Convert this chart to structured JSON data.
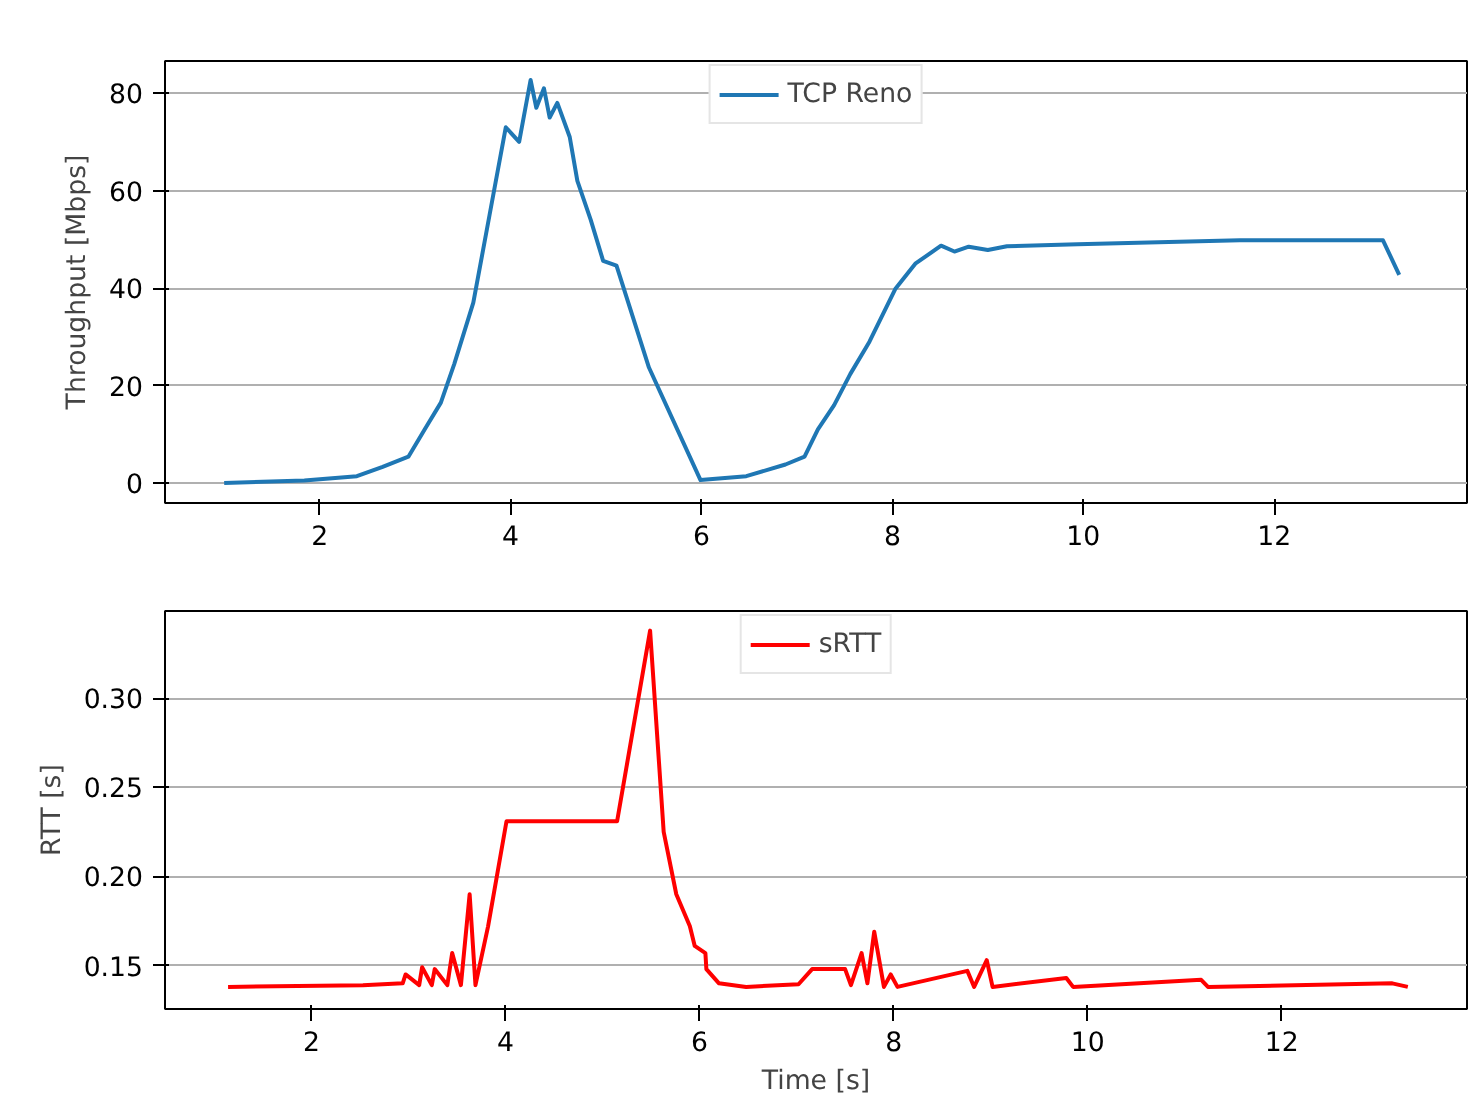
{
  "chart_data": [
    {
      "type": "line",
      "ylabel": "Throughput [Mbps]",
      "xlim": [
        0.38,
        14.02
      ],
      "xticks": [
        2,
        4,
        6,
        8,
        10,
        12
      ],
      "ylim": [
        -4.1,
        86.6
      ],
      "yticks": [
        0,
        20,
        40,
        60,
        80
      ],
      "grid": "y",
      "legend": "top",
      "series": [
        {
          "name": "TCP Reno",
          "color": "#1f77b4",
          "x": [
            1.0,
            1.84,
            2.39,
            2.66,
            2.93,
            3.1,
            3.27,
            3.41,
            3.61,
            3.78,
            3.95,
            4.09,
            4.21,
            4.27,
            4.35,
            4.41,
            4.49,
            4.62,
            4.7,
            4.84,
            4.97,
            5.11,
            5.45,
            5.99,
            6.47,
            6.88,
            7.08,
            7.22,
            7.39,
            7.56,
            7.76,
            8.03,
            8.24,
            8.51,
            8.65,
            8.8,
            9.0,
            9.2,
            9.94,
            11.64,
            13.14,
            13.31
          ],
          "values": [
            0,
            0.5,
            1.4,
            3.3,
            5.4,
            11,
            16.5,
            24.4,
            37,
            55,
            73,
            70,
            82.7,
            77,
            81,
            75,
            78,
            71,
            62,
            54,
            45.6,
            44.6,
            23.7,
            0.6,
            1.4,
            3.8,
            5.4,
            11,
            16,
            22.4,
            29,
            39.8,
            45,
            48.7,
            47.5,
            48.5,
            47.8,
            48.6,
            49,
            49.8,
            49.8,
            42.7
          ]
        }
      ]
    },
    {
      "type": "line",
      "xlabel": "Time [s]",
      "ylabel": "RTT [s]",
      "xlim": [
        0.49,
        13.91
      ],
      "xticks": [
        2,
        4,
        6,
        8,
        10,
        12
      ],
      "ylim": [
        0.1256,
        0.349
      ],
      "yticks": [
        0.15,
        {
          "value": 0.2,
          "label": "0.20"
        },
        0.25,
        {
          "value": 0.3,
          "label": "0.30"
        }
      ],
      "grid": "y",
      "legend": "top",
      "series": [
        {
          "name": "sRTT",
          "color": "#ff0000",
          "x": [
            1.14,
            2.53,
            2.94,
            2.97,
            3.11,
            3.14,
            3.24,
            3.27,
            3.4,
            3.45,
            3.54,
            3.63,
            3.69,
            3.82,
            4.01,
            5.15,
            5.49,
            5.63,
            5.76,
            5.9,
            5.95,
            6.06,
            6.07,
            6.2,
            6.48,
            7.02,
            7.16,
            7.5,
            7.56,
            7.67,
            7.73,
            7.8,
            7.9,
            7.97,
            8.04,
            8.76,
            8.83,
            8.96,
            9.02,
            9.78,
            9.85,
            11.17,
            11.24,
            13.14,
            13.3
          ],
          "values": [
            0.138,
            0.139,
            0.14,
            0.145,
            0.139,
            0.149,
            0.139,
            0.148,
            0.139,
            0.157,
            0.139,
            0.19,
            0.139,
            0.172,
            0.231,
            0.231,
            0.338,
            0.225,
            0.19,
            0.172,
            0.161,
            0.157,
            0.148,
            0.14,
            0.138,
            0.1395,
            0.148,
            0.148,
            0.139,
            0.157,
            0.14,
            0.169,
            0.138,
            0.145,
            0.138,
            0.147,
            0.138,
            0.153,
            0.138,
            0.143,
            0.138,
            0.142,
            0.138,
            0.14,
            0.138
          ]
        }
      ]
    }
  ]
}
